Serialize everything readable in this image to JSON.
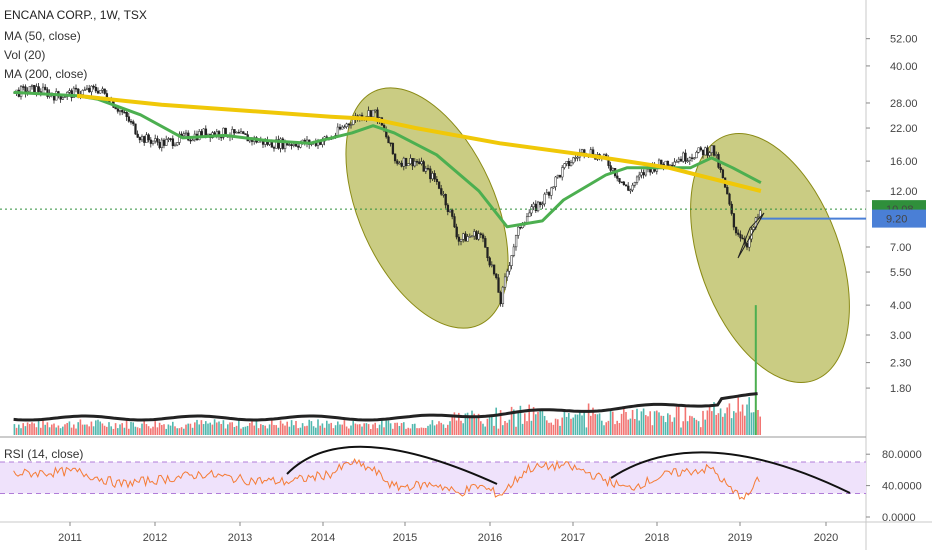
{
  "header": {
    "symbol_line": "ENCANA CORP., 1W, TSX",
    "ma1": "MA (50, close)",
    "vol": "Vol (20)",
    "ma2": "MA (200, close)"
  },
  "rsi_label": "RSI (14, close)",
  "price_labels": {
    "last": "10.08",
    "hline": "9.20"
  },
  "colors": {
    "up": "#26a69a",
    "down": "#ef5350",
    "ma50": "#4caf50",
    "ma200": "#f0c808",
    "rsi": "#f57c36",
    "ellipse_fill": "#9fa31e",
    "hline": "#4a7fd6",
    "last_badge": "#2f8f3b"
  },
  "chart_data": {
    "type": "candlestick",
    "x_axis": {
      "ticks": [
        "2011",
        "2012",
        "2013",
        "2014",
        "2015",
        "2016",
        "2017",
        "2018",
        "2019",
        "2020"
      ]
    },
    "price_axis": {
      "scale": "log",
      "ticks": [
        "52.00",
        "40.00",
        "28.00",
        "22.00",
        "16.00",
        "12.00",
        "9.20",
        "7.00",
        "5.50",
        "4.00",
        "3.00",
        "2.30",
        "1.80"
      ]
    },
    "price_path": [
      [
        "2010-05",
        31
      ],
      [
        "2010-08",
        32
      ],
      [
        "2010-11",
        30
      ],
      [
        "2011-02",
        31
      ],
      [
        "2011-05",
        32
      ],
      [
        "2011-08",
        26
      ],
      [
        "2011-11",
        20
      ],
      [
        "2012-02",
        19
      ],
      [
        "2012-05",
        20
      ],
      [
        "2012-08",
        21
      ],
      [
        "2012-11",
        21
      ],
      [
        "2013-02",
        20
      ],
      [
        "2013-05",
        19
      ],
      [
        "2013-08",
        19
      ],
      [
        "2013-11",
        19
      ],
      [
        "2014-02",
        20
      ],
      [
        "2014-05",
        24
      ],
      [
        "2014-08",
        26
      ],
      [
        "2014-11",
        16
      ],
      [
        "2015-02",
        16
      ],
      [
        "2015-05",
        13
      ],
      [
        "2015-08",
        7.5
      ],
      [
        "2015-11",
        8
      ],
      [
        "2016-02",
        4.1
      ],
      [
        "2016-05",
        9
      ],
      [
        "2016-08",
        11
      ],
      [
        "2016-11",
        15
      ],
      [
        "2017-02",
        18
      ],
      [
        "2017-05",
        16
      ],
      [
        "2017-08",
        12
      ],
      [
        "2017-11",
        15
      ],
      [
        "2018-02",
        16
      ],
      [
        "2018-05",
        17
      ],
      [
        "2018-08",
        18
      ],
      [
        "2018-11",
        8.5
      ],
      [
        "2019-01",
        7.2
      ],
      [
        "2019-03",
        10.08
      ]
    ],
    "series": [
      {
        "name": "MA (50, close)",
        "points": [
          [
            "2010-05",
            31
          ],
          [
            "2011-02",
            30
          ],
          [
            "2011-05",
            29
          ],
          [
            "2011-11",
            25
          ],
          [
            "2012-05",
            20
          ],
          [
            "2012-11",
            20.5
          ],
          [
            "2013-05",
            19.5
          ],
          [
            "2013-11",
            19
          ],
          [
            "2014-05",
            21
          ],
          [
            "2014-08",
            22.5
          ],
          [
            "2014-11",
            21
          ],
          [
            "2015-05",
            17
          ],
          [
            "2015-11",
            12
          ],
          [
            "2016-03",
            8.5
          ],
          [
            "2016-08",
            9
          ],
          [
            "2016-11",
            11
          ],
          [
            "2017-05",
            14
          ],
          [
            "2017-08",
            15
          ],
          [
            "2017-11",
            15
          ],
          [
            "2018-05",
            15
          ],
          [
            "2018-08",
            16.5
          ],
          [
            "2018-11",
            15
          ],
          [
            "2019-03",
            13
          ]
        ]
      },
      {
        "name": "MA (200, close)",
        "points": [
          [
            "2011-02",
            30
          ],
          [
            "2012-02",
            27.5
          ],
          [
            "2013-02",
            26
          ],
          [
            "2014-02",
            24.5
          ],
          [
            "2014-08",
            24
          ],
          [
            "2015-02",
            22
          ],
          [
            "2016-02",
            19
          ],
          [
            "2017-02",
            17
          ],
          [
            "2018-02",
            15
          ],
          [
            "2019-03",
            12
          ]
        ]
      }
    ],
    "volume": {
      "spike_date": "2019-01",
      "spike_value": 4.0
    },
    "rsi": {
      "ticks": [
        "80.0000",
        "40.0000",
        "0.0000"
      ],
      "bands": [
        70,
        30
      ],
      "path": [
        [
          "2010-05",
          55
        ],
        [
          "2011-02",
          58
        ],
        [
          "2011-08",
          42
        ],
        [
          "2012-02",
          48
        ],
        [
          "2012-08",
          55
        ],
        [
          "2013-02",
          47
        ],
        [
          "2013-08",
          45
        ],
        [
          "2014-02",
          55
        ],
        [
          "2014-05",
          70
        ],
        [
          "2014-08",
          60
        ],
        [
          "2014-11",
          38
        ],
        [
          "2015-05",
          42
        ],
        [
          "2015-08",
          30
        ],
        [
          "2015-11",
          40
        ],
        [
          "2016-02",
          28
        ],
        [
          "2016-06",
          62
        ],
        [
          "2016-11",
          66
        ],
        [
          "2017-02",
          58
        ],
        [
          "2017-08",
          36
        ],
        [
          "2018-02",
          55
        ],
        [
          "2018-08",
          62
        ],
        [
          "2018-11",
          32
        ],
        [
          "2019-01",
          25
        ],
        [
          "2019-03",
          52
        ]
      ]
    }
  }
}
